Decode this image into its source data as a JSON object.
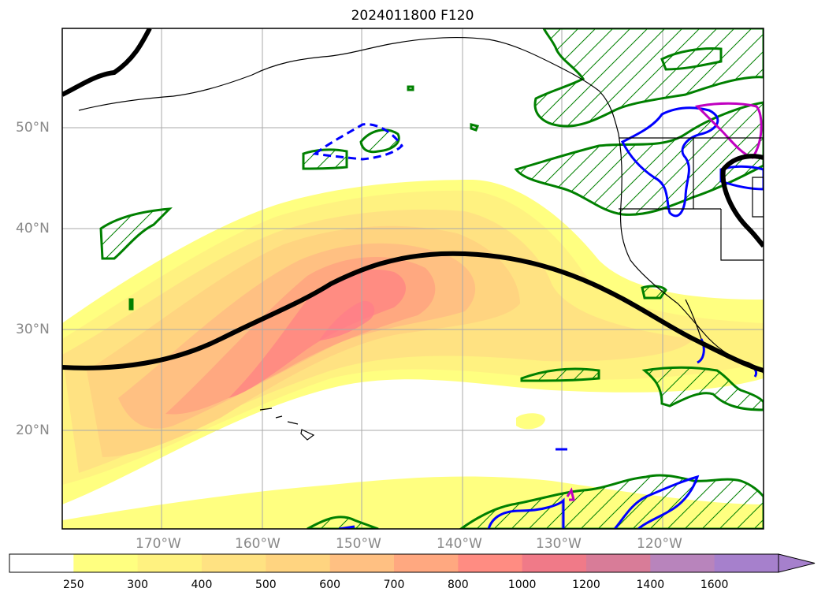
{
  "title": "2024011800 F120",
  "lat_labels": [
    "50°N",
    "40°N",
    "30°N",
    "20°N"
  ],
  "lon_labels": [
    "170°W",
    "160°W",
    "150°W",
    "140°W",
    "130°W",
    "120°W"
  ],
  "colorbar": {
    "ticks": [
      "250",
      "300",
      "400",
      "500",
      "600",
      "700",
      "800",
      "1000",
      "1200",
      "1400",
      "1600"
    ],
    "colors": [
      "#ffffff",
      "#ffff80",
      "#fff280",
      "#ffe282",
      "#ffd480",
      "#ffc082",
      "#ffa880",
      "#ff8c82",
      "#f07a88",
      "#d87c98",
      "#b884bc",
      "#a680cc"
    ],
    "extend": "max"
  },
  "contours": {
    "height_line_color": "#000000",
    "green_hatched_color": "#008000",
    "blue_contour_color": "#0000ff",
    "magenta_contour_color": "#c000c0"
  }
}
